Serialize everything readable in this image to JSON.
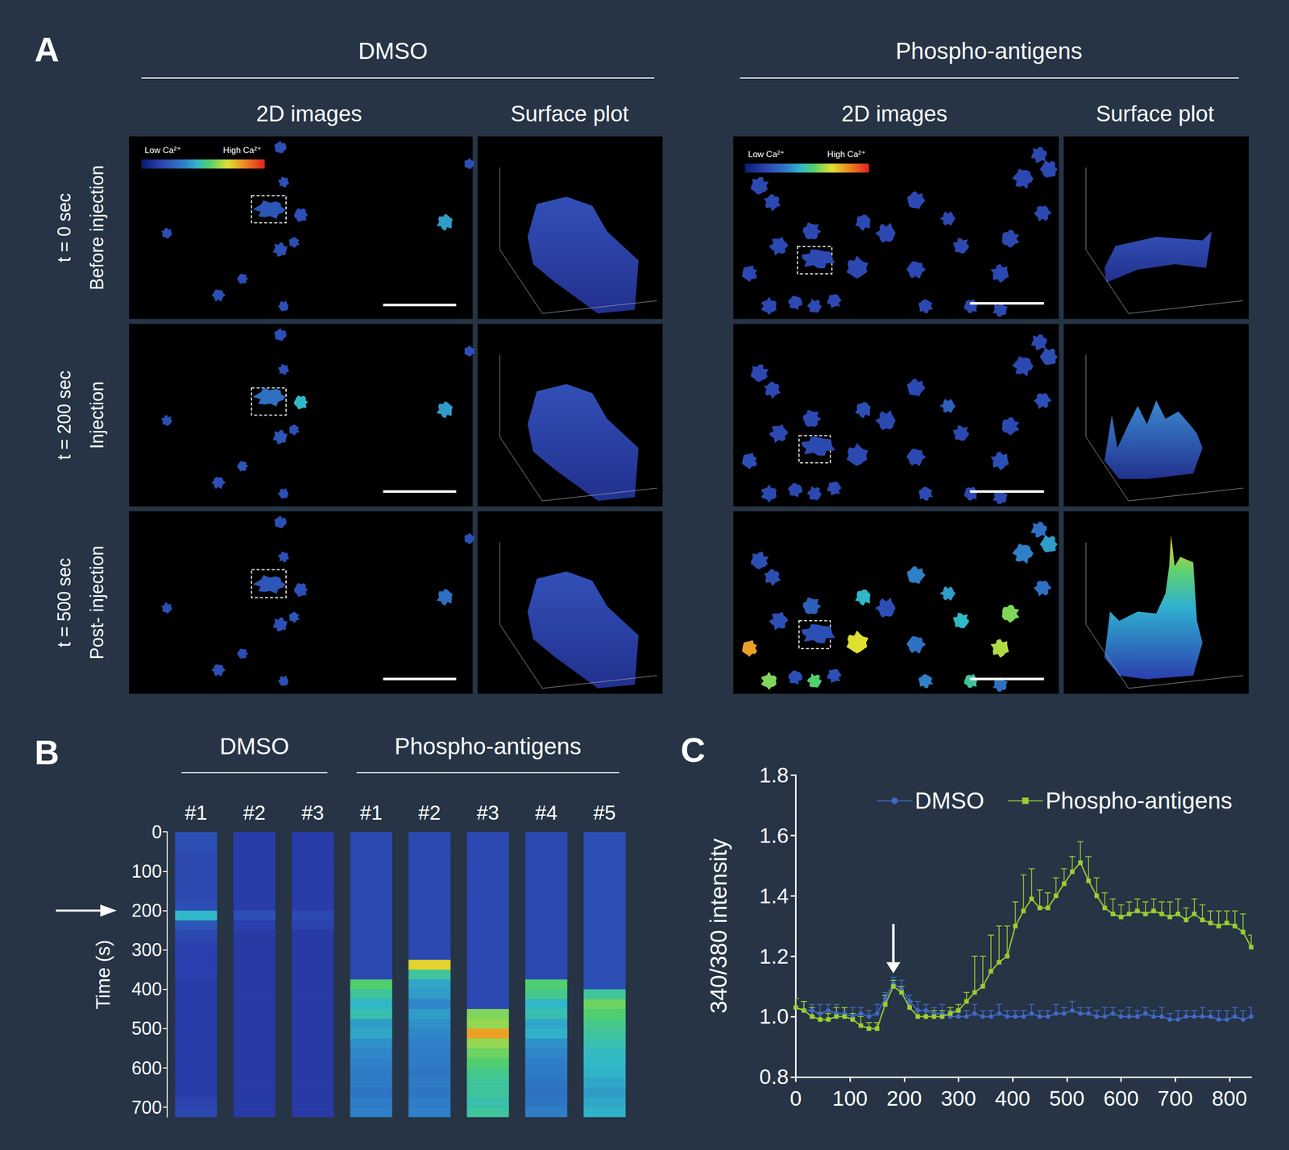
{
  "figure": {
    "panel_a": {
      "label": "A",
      "groups": [
        "DMSO",
        "Phospho-antigens"
      ],
      "columns": [
        "2D images",
        "Surface plot"
      ],
      "rows": [
        {
          "time": "t = 0 sec",
          "stage": "Before injection"
        },
        {
          "time": "t = 200 sec",
          "stage": "Injection"
        },
        {
          "time": "t = 500 sec",
          "stage": "Post- injection"
        }
      ],
      "colorbar": [
        "Low Ca²⁺",
        "High Ca²⁺"
      ]
    }
  },
  "chart_data": [
    {
      "label": "B",
      "type": "heatmap",
      "groups": [
        {
          "name": "DMSO",
          "lanes": 3
        },
        {
          "name": "Phospho-antigens",
          "lanes": 5
        }
      ],
      "categories": [
        "#1",
        "#2",
        "#3",
        "#1",
        "#2",
        "#3",
        "#4",
        "#5"
      ],
      "y": [
        0,
        25,
        50,
        75,
        100,
        125,
        150,
        175,
        200,
        225,
        250,
        275,
        300,
        325,
        350,
        375,
        400,
        425,
        450,
        475,
        500,
        525,
        550,
        575,
        600,
        625,
        650,
        675,
        700
      ],
      "values": [
        [
          0.2,
          0.2,
          0.18,
          0.18,
          0.18,
          0.18,
          0.18,
          0.2,
          0.45,
          0.22,
          0.18,
          0.16,
          0.15,
          0.15,
          0.15,
          0.14,
          0.14,
          0.14,
          0.14,
          0.14,
          0.14,
          0.14,
          0.14,
          0.14,
          0.14,
          0.14,
          0.14,
          0.16,
          0.18
        ],
        [
          0.14,
          0.14,
          0.14,
          0.14,
          0.14,
          0.14,
          0.14,
          0.14,
          0.2,
          0.15,
          0.13,
          0.13,
          0.13,
          0.13,
          0.13,
          0.13,
          0.13,
          0.13,
          0.13,
          0.13,
          0.13,
          0.13,
          0.13,
          0.13,
          0.13,
          0.13,
          0.13,
          0.13,
          0.13
        ],
        [
          0.14,
          0.14,
          0.14,
          0.14,
          0.14,
          0.14,
          0.14,
          0.14,
          0.18,
          0.16,
          0.13,
          0.13,
          0.13,
          0.13,
          0.13,
          0.13,
          0.13,
          0.13,
          0.13,
          0.13,
          0.13,
          0.13,
          0.13,
          0.13,
          0.13,
          0.13,
          0.13,
          0.13,
          0.13
        ],
        [
          0.18,
          0.18,
          0.18,
          0.18,
          0.18,
          0.18,
          0.18,
          0.18,
          0.18,
          0.18,
          0.18,
          0.18,
          0.18,
          0.18,
          0.18,
          0.55,
          0.5,
          0.45,
          0.48,
          0.4,
          0.42,
          0.38,
          0.36,
          0.35,
          0.33,
          0.33,
          0.32,
          0.34,
          0.35
        ],
        [
          0.18,
          0.18,
          0.18,
          0.18,
          0.18,
          0.18,
          0.18,
          0.18,
          0.18,
          0.18,
          0.18,
          0.18,
          0.18,
          0.72,
          0.5,
          0.42,
          0.4,
          0.36,
          0.4,
          0.38,
          0.36,
          0.35,
          0.34,
          0.33,
          0.32,
          0.33,
          0.32,
          0.34,
          0.35
        ],
        [
          0.18,
          0.18,
          0.18,
          0.18,
          0.18,
          0.18,
          0.18,
          0.18,
          0.18,
          0.18,
          0.18,
          0.18,
          0.18,
          0.18,
          0.18,
          0.18,
          0.18,
          0.18,
          0.6,
          0.62,
          0.8,
          0.62,
          0.58,
          0.55,
          0.52,
          0.5,
          0.5,
          0.48,
          0.5
        ],
        [
          0.18,
          0.18,
          0.18,
          0.18,
          0.18,
          0.18,
          0.18,
          0.18,
          0.18,
          0.18,
          0.18,
          0.18,
          0.18,
          0.18,
          0.18,
          0.55,
          0.52,
          0.45,
          0.48,
          0.42,
          0.44,
          0.38,
          0.36,
          0.34,
          0.33,
          0.32,
          0.3,
          0.32,
          0.34
        ],
        [
          0.2,
          0.2,
          0.2,
          0.2,
          0.2,
          0.2,
          0.2,
          0.2,
          0.2,
          0.2,
          0.2,
          0.2,
          0.2,
          0.2,
          0.2,
          0.2,
          0.5,
          0.58,
          0.55,
          0.52,
          0.5,
          0.48,
          0.46,
          0.45,
          0.44,
          0.42,
          0.4,
          0.42,
          0.44
        ]
      ],
      "color_range": [
        0,
        1
      ],
      "ylabel": "Time (s)",
      "ylim": [
        0,
        725
      ],
      "yticks": [
        0,
        100,
        200,
        300,
        400,
        500,
        600,
        700
      ],
      "annotations": [
        {
          "y": 200
        }
      ]
    },
    {
      "label": "C",
      "type": "line",
      "x": [
        0,
        15,
        30,
        45,
        60,
        75,
        90,
        105,
        120,
        135,
        150,
        165,
        180,
        195,
        210,
        225,
        240,
        255,
        270,
        285,
        300,
        315,
        330,
        345,
        360,
        375,
        390,
        405,
        420,
        435,
        450,
        465,
        480,
        495,
        510,
        525,
        540,
        555,
        570,
        585,
        600,
        615,
        630,
        645,
        660,
        675,
        690,
        705,
        720,
        735,
        750,
        765,
        780,
        795,
        810,
        825,
        840
      ],
      "ylabel": "340/380 intensity",
      "series": [
        {
          "name": "DMSO",
          "color": "#4169c8",
          "marker": "circle",
          "values": [
            1.03,
            1.02,
            1.02,
            1.01,
            1.02,
            1.01,
            1.01,
            1.0,
            1.01,
            1.0,
            1.01,
            1.06,
            1.11,
            1.09,
            1.05,
            1.02,
            1.02,
            1.01,
            1.01,
            1.0,
            1.0,
            1.0,
            1.01,
            1.0,
            1.0,
            1.01,
            1.0,
            1.0,
            1.0,
            1.01,
            1.0,
            1.0,
            1.01,
            1.01,
            1.02,
            1.01,
            1.01,
            1.0,
            1.0,
            1.01,
            1.0,
            1.0,
            1.0,
            1.01,
            1.0,
            1.0,
            0.99,
            0.99,
            1.0,
            1.0,
            1.0,
            1.0,
            0.99,
            0.99,
            1.0,
            0.99,
            1.0
          ],
          "errors": [
            0.03,
            0.03,
            0.02,
            0.03,
            0.02,
            0.03,
            0.02,
            0.03,
            0.02,
            0.02,
            0.03,
            0.02,
            0.02,
            0.03,
            0.02,
            0.03,
            0.02,
            0.02,
            0.03,
            0.02,
            0.02,
            0.02,
            0.03,
            0.02,
            0.02,
            0.03,
            0.02,
            0.02,
            0.02,
            0.03,
            0.02,
            0.02,
            0.03,
            0.02,
            0.03,
            0.02,
            0.02,
            0.02,
            0.03,
            0.02,
            0.02,
            0.03,
            0.02,
            0.02,
            0.02,
            0.03,
            0.02,
            0.03,
            0.02,
            0.02,
            0.03,
            0.02,
            0.03,
            0.03,
            0.03,
            0.03,
            0.03
          ]
        },
        {
          "name": "Phospho-antigens",
          "color": "#9acd32",
          "marker": "square",
          "values": [
            1.03,
            1.02,
            1.0,
            0.99,
            0.99,
            1.0,
            1.0,
            0.99,
            0.97,
            0.96,
            0.96,
            1.04,
            1.1,
            1.08,
            1.03,
            1.0,
            1.0,
            1.0,
            1.0,
            1.01,
            1.02,
            1.05,
            1.08,
            1.1,
            1.15,
            1.18,
            1.2,
            1.3,
            1.35,
            1.39,
            1.36,
            1.36,
            1.4,
            1.44,
            1.48,
            1.51,
            1.45,
            1.4,
            1.36,
            1.34,
            1.33,
            1.34,
            1.35,
            1.34,
            1.35,
            1.34,
            1.33,
            1.34,
            1.32,
            1.34,
            1.32,
            1.31,
            1.3,
            1.31,
            1.3,
            1.28,
            1.23
          ],
          "errors": [
            0.03,
            0.03,
            0.03,
            0.02,
            0.02,
            0.03,
            0.03,
            0.02,
            0.03,
            0.02,
            0.02,
            0.03,
            0.02,
            0.02,
            0.02,
            0.02,
            0.02,
            0.02,
            0.02,
            0.02,
            0.02,
            0.03,
            0.12,
            0.1,
            0.12,
            0.12,
            0.1,
            0.08,
            0.12,
            0.1,
            0.06,
            0.05,
            0.06,
            0.05,
            0.05,
            0.07,
            0.08,
            0.06,
            0.05,
            0.05,
            0.04,
            0.04,
            0.04,
            0.04,
            0.04,
            0.04,
            0.05,
            0.05,
            0.04,
            0.05,
            0.05,
            0.04,
            0.05,
            0.04,
            0.05,
            0.06,
            0.04
          ]
        }
      ],
      "xlim": [
        0,
        840
      ],
      "xticks": [
        0,
        100,
        200,
        300,
        400,
        500,
        600,
        700,
        800
      ],
      "ylim": [
        0.8,
        1.8
      ],
      "yticks": [
        0.8,
        {
          "value": 1,
          "label": "1.0"
        },
        1.2,
        1.4,
        1.6,
        1.8
      ],
      "legend": "top-right",
      "annotations": [
        {
          "x": 180
        }
      ]
    }
  ]
}
